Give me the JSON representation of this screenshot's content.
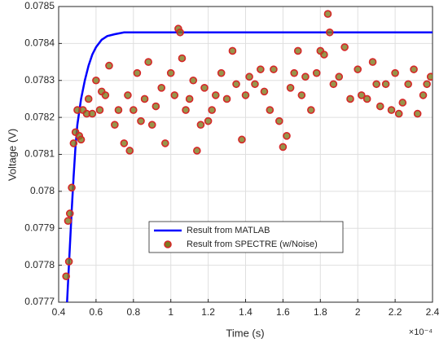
{
  "chart_data": {
    "type": "line-scatter",
    "xlabel": "Time (s)",
    "ylabel": "Voltage (V)",
    "x_multiplier": "×10⁻⁴",
    "xlim": [
      0.4,
      2.4
    ],
    "xticks": [
      0.4,
      0.6,
      0.8,
      1,
      1.2,
      1.4,
      1.6,
      1.8,
      2,
      2.2,
      2.4
    ],
    "ylim": [
      0.0777,
      0.0785
    ],
    "yticks": [
      0.0777,
      0.0778,
      0.0779,
      0.078,
      0.0781,
      0.0782,
      0.0783,
      0.0784,
      0.0785
    ],
    "grid": true,
    "legend": "bottom",
    "series": [
      {
        "name": "Result from MATLAB",
        "kind": "line",
        "color": "#0000ff",
        "x": [
          0.445,
          0.46,
          0.47,
          0.48,
          0.49,
          0.5,
          0.52,
          0.54,
          0.56,
          0.58,
          0.6,
          0.63,
          0.66,
          0.7,
          0.75,
          0.8,
          1,
          1.5,
          2,
          2.4
        ],
        "y": [
          0.0777,
          0.07785,
          0.07795,
          0.07804,
          0.07812,
          0.07818,
          0.07825,
          0.0783,
          0.07834,
          0.07837,
          0.07839,
          0.07841,
          0.07842,
          0.078425,
          0.07843,
          0.07843,
          0.07843,
          0.07843,
          0.07843,
          0.07843
        ]
      },
      {
        "name": "Result from SPECTRE (w/Noise)",
        "kind": "scatter",
        "color": "#d62728",
        "marker_face": "#7d7a1e",
        "x": [
          0.44,
          0.45,
          0.455,
          0.46,
          0.47,
          0.48,
          0.49,
          0.5,
          0.51,
          0.52,
          0.53,
          0.55,
          0.56,
          0.58,
          0.6,
          0.62,
          0.63,
          0.65,
          0.67,
          0.7,
          0.72,
          0.75,
          0.77,
          0.78,
          0.8,
          0.82,
          0.84,
          0.86,
          0.88,
          0.9,
          0.92,
          0.95,
          0.97,
          1.0,
          1.02,
          1.04,
          1.05,
          1.06,
          1.08,
          1.1,
          1.12,
          1.14,
          1.16,
          1.18,
          1.2,
          1.22,
          1.24,
          1.27,
          1.3,
          1.33,
          1.35,
          1.38,
          1.4,
          1.42,
          1.45,
          1.48,
          1.5,
          1.53,
          1.55,
          1.58,
          1.6,
          1.62,
          1.64,
          1.66,
          1.68,
          1.7,
          1.72,
          1.75,
          1.78,
          1.8,
          1.82,
          1.84,
          1.85,
          1.87,
          1.9,
          1.93,
          1.96,
          2.0,
          2.02,
          2.05,
          2.08,
          2.1,
          2.12,
          2.15,
          2.18,
          2.2,
          2.22,
          2.24,
          2.27,
          2.3,
          2.32,
          2.35,
          2.37,
          2.39
        ],
        "y": [
          0.07777,
          0.07792,
          0.07781,
          0.07794,
          0.07801,
          0.07813,
          0.07816,
          0.07822,
          0.07815,
          0.07814,
          0.07822,
          0.07821,
          0.07825,
          0.07821,
          0.0783,
          0.07822,
          0.07827,
          0.07826,
          0.07834,
          0.07818,
          0.07822,
          0.07813,
          0.07826,
          0.07811,
          0.07822,
          0.07832,
          0.07819,
          0.07825,
          0.07835,
          0.07818,
          0.07823,
          0.07828,
          0.07813,
          0.07832,
          0.07826,
          0.07844,
          0.07843,
          0.07836,
          0.07822,
          0.07825,
          0.0783,
          0.07811,
          0.07818,
          0.07828,
          0.07819,
          0.07822,
          0.07826,
          0.07832,
          0.07825,
          0.07838,
          0.07829,
          0.07814,
          0.07826,
          0.07831,
          0.07829,
          0.07833,
          0.07827,
          0.07822,
          0.07833,
          0.07819,
          0.07812,
          0.07815,
          0.07828,
          0.07832,
          0.07838,
          0.07826,
          0.07831,
          0.07822,
          0.07832,
          0.07838,
          0.07837,
          0.07848,
          0.07843,
          0.07829,
          0.07831,
          0.07839,
          0.07825,
          0.07833,
          0.07826,
          0.07825,
          0.07835,
          0.07829,
          0.07823,
          0.07829,
          0.07822,
          0.07832,
          0.07821,
          0.07824,
          0.07829,
          0.07833,
          0.07821,
          0.07826,
          0.07829,
          0.07831
        ]
      }
    ]
  }
}
